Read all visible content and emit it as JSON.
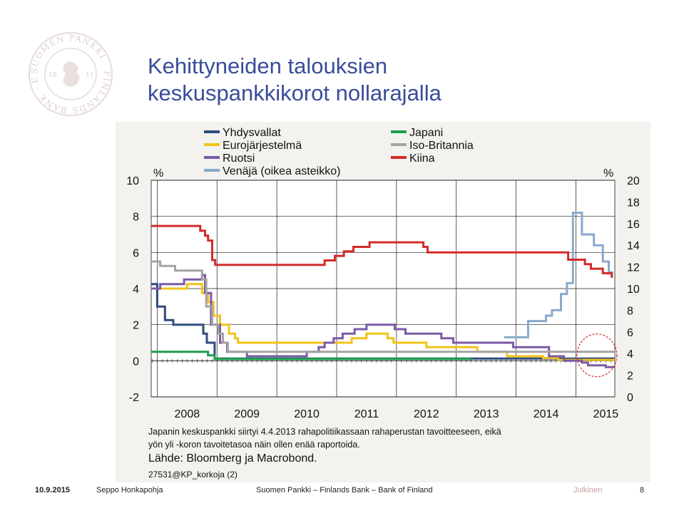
{
  "slide": {
    "title_line1": "Kehittyneiden talouksien",
    "title_line2": "keskuspankkikorot nollarajalla",
    "logo_text": "SUOMEN PANKKI · FINLANDS BANK · EUROSYSTEM",
    "logo_year_left": "18",
    "logo_year_right": "11"
  },
  "footer": {
    "date": "10.9.2015",
    "author": "Seppo Honkapohja",
    "org": "Suomen Pankki – Finlands Bank – Bank of Finland",
    "classification": "Julkinen",
    "page": "8"
  },
  "chart_data": {
    "type": "line",
    "left_unit": "%",
    "right_unit": "%",
    "ylim_left": [
      -2,
      10
    ],
    "ylim_right": [
      0,
      20
    ],
    "xlim": [
      2007.9,
      2015.65
    ],
    "left_ticks": [
      "10",
      "8",
      "6",
      "4",
      "2",
      "0",
      "-2"
    ],
    "right_ticks": [
      "20",
      "18",
      "16",
      "14",
      "12",
      "10",
      "8",
      "6",
      "4",
      "2",
      "0"
    ],
    "x_ticks": [
      "2008",
      "2009",
      "2010",
      "2011",
      "2012",
      "2013",
      "2014",
      "2015"
    ],
    "grid": true,
    "legend_position": "top",
    "notes": [
      "Japanin keskuspankki siirtyi 4.4.2013 rahapolitiikassaan rahaperustan tavoitteeseen, eikä",
      "yön yli -koron tavoitetasoa näin ollen enää raportoida."
    ],
    "source": "Lähde: Bloomberg ja Macrobond.",
    "code": "27531@KP_korkoja (2)",
    "series": [
      {
        "name": "Yhdysvallat",
        "color": "#2f4b7c",
        "axis": "left",
        "points": [
          [
            2007.9,
            4.25
          ],
          [
            2008.0,
            3.0
          ],
          [
            2008.1,
            3.0
          ],
          [
            2008.13,
            2.25
          ],
          [
            2008.27,
            2.0
          ],
          [
            2008.77,
            1.5
          ],
          [
            2008.83,
            1.0
          ],
          [
            2008.96,
            0.125
          ],
          [
            2015.65,
            0.125
          ]
        ]
      },
      {
        "name": "Eurojärjestelmä",
        "color": "#f2c318",
        "axis": "left",
        "points": [
          [
            2007.9,
            4.0
          ],
          [
            2008.5,
            4.25
          ],
          [
            2008.75,
            3.75
          ],
          [
            2008.85,
            3.25
          ],
          [
            2008.94,
            2.5
          ],
          [
            2009.05,
            2.0
          ],
          [
            2009.2,
            1.5
          ],
          [
            2009.3,
            1.25
          ],
          [
            2009.35,
            1.0
          ],
          [
            2011.25,
            1.25
          ],
          [
            2011.5,
            1.5
          ],
          [
            2011.85,
            1.25
          ],
          [
            2011.95,
            1.0
          ],
          [
            2012.5,
            0.75
          ],
          [
            2013.35,
            0.5
          ],
          [
            2013.85,
            0.25
          ],
          [
            2014.45,
            0.15
          ],
          [
            2014.7,
            0.05
          ],
          [
            2015.65,
            0.05
          ]
        ]
      },
      {
        "name": "Ruotsi",
        "color": "#7b5aa6",
        "axis": "left",
        "points": [
          [
            2007.9,
            4.0
          ],
          [
            2008.05,
            4.25
          ],
          [
            2008.45,
            4.5
          ],
          [
            2008.75,
            4.75
          ],
          [
            2008.8,
            3.75
          ],
          [
            2008.9,
            2.0
          ],
          [
            2009.05,
            1.0
          ],
          [
            2009.17,
            0.5
          ],
          [
            2009.5,
            0.25
          ],
          [
            2010.5,
            0.5
          ],
          [
            2010.7,
            0.75
          ],
          [
            2010.8,
            1.0
          ],
          [
            2010.95,
            1.25
          ],
          [
            2011.1,
            1.5
          ],
          [
            2011.3,
            1.75
          ],
          [
            2011.5,
            2.0
          ],
          [
            2011.97,
            1.75
          ],
          [
            2012.15,
            1.5
          ],
          [
            2012.75,
            1.25
          ],
          [
            2012.95,
            1.0
          ],
          [
            2013.95,
            0.75
          ],
          [
            2014.55,
            0.25
          ],
          [
            2014.8,
            0.0
          ],
          [
            2015.1,
            -0.1
          ],
          [
            2015.2,
            -0.25
          ],
          [
            2015.5,
            -0.35
          ],
          [
            2015.65,
            -0.35
          ]
        ]
      },
      {
        "name": "Venäjä (oikea asteikko)",
        "color": "#88a9cb",
        "axis": "right",
        "points": [
          [
            2013.8,
            5.5
          ],
          [
            2014.2,
            7.0
          ],
          [
            2014.5,
            7.5
          ],
          [
            2014.6,
            8.0
          ],
          [
            2014.75,
            9.5
          ],
          [
            2014.85,
            10.5
          ],
          [
            2014.95,
            17.0
          ],
          [
            2015.1,
            15.0
          ],
          [
            2015.3,
            14.0
          ],
          [
            2015.45,
            12.5
          ],
          [
            2015.55,
            11.5
          ],
          [
            2015.6,
            11.0
          ]
        ]
      },
      {
        "name": "Japani",
        "color": "#1a9e4b",
        "axis": "left",
        "points": [
          [
            2007.9,
            0.5
          ],
          [
            2008.5,
            0.5
          ],
          [
            2008.85,
            0.3
          ],
          [
            2008.96,
            0.1
          ],
          [
            2013.25,
            0.1
          ]
        ]
      },
      {
        "name": "Iso-Britannia",
        "color": "#a3a3a3",
        "axis": "left",
        "points": [
          [
            2007.9,
            5.5
          ],
          [
            2008.0,
            5.5
          ],
          [
            2008.05,
            5.25
          ],
          [
            2008.3,
            5.0
          ],
          [
            2008.75,
            4.5
          ],
          [
            2008.82,
            3.0
          ],
          [
            2008.92,
            2.0
          ],
          [
            2009.02,
            1.5
          ],
          [
            2009.1,
            1.0
          ],
          [
            2009.18,
            0.5
          ],
          [
            2015.65,
            0.5
          ]
        ]
      },
      {
        "name": "Kiina",
        "color": "#d42b2b",
        "axis": "left",
        "points": [
          [
            2007.9,
            7.47
          ],
          [
            2008.72,
            7.2
          ],
          [
            2008.8,
            6.93
          ],
          [
            2008.85,
            6.66
          ],
          [
            2008.92,
            5.58
          ],
          [
            2008.97,
            5.31
          ],
          [
            2010.8,
            5.56
          ],
          [
            2010.97,
            5.81
          ],
          [
            2011.12,
            6.06
          ],
          [
            2011.28,
            6.31
          ],
          [
            2011.55,
            6.56
          ],
          [
            2012.45,
            6.31
          ],
          [
            2012.52,
            6.0
          ],
          [
            2014.87,
            5.6
          ],
          [
            2015.15,
            5.35
          ],
          [
            2015.25,
            5.1
          ],
          [
            2015.45,
            4.85
          ],
          [
            2015.6,
            4.6
          ]
        ]
      }
    ]
  }
}
